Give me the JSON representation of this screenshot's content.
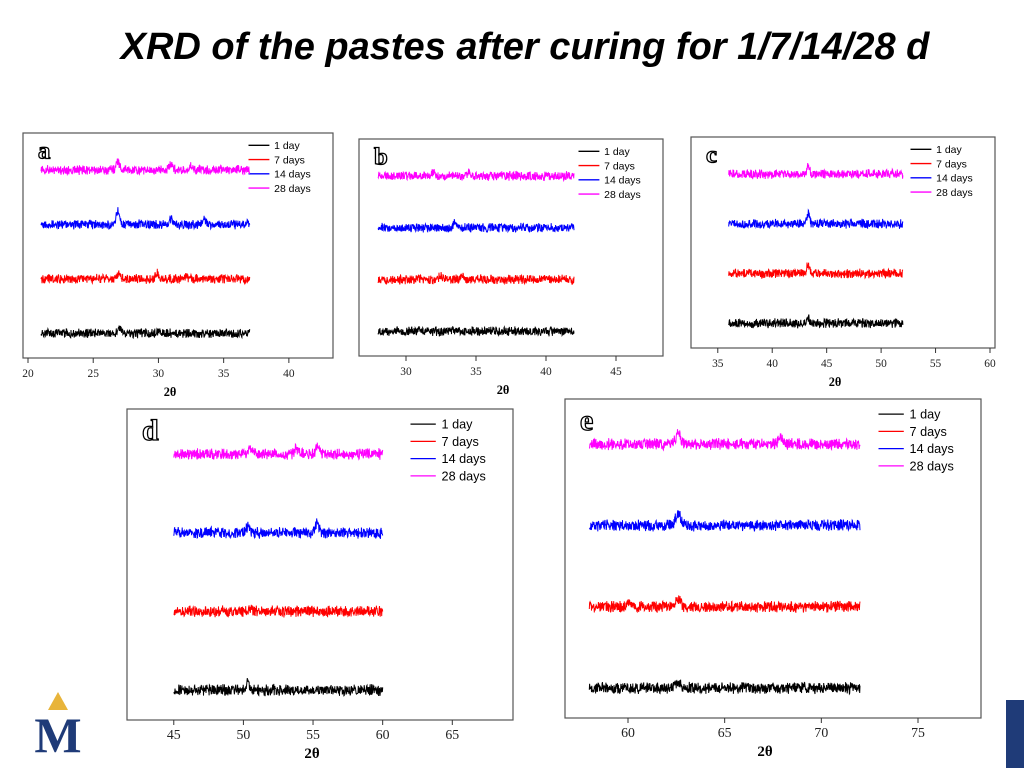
{
  "slide": {
    "title": "XRD of the pastes after curing for 1/7/14/28 d"
  },
  "branding": {
    "logo_letter": "M",
    "accent": "#1f3b78",
    "gold": "#e8b43a"
  },
  "colors": {
    "1 day": "#000000",
    "7 days": "#ff0000",
    "14 days": "#0000ff",
    "28 days": "#ff00ff"
  },
  "chart_data": [
    {
      "type": "line",
      "label": "a",
      "xlabel": "2θ",
      "ylabel": "",
      "xlim": [
        20,
        43
      ],
      "xticks": [
        20,
        25,
        30,
        35,
        40
      ],
      "data_range": [
        21,
        37
      ],
      "yticks_shown": false,
      "legend": "top-right",
      "series": [
        {
          "name": "1   day",
          "offset": 0,
          "peaks": [
            [
              27,
              1.0
            ],
            [
              30,
              0.5
            ]
          ]
        },
        {
          "name": "7   days",
          "offset": 1,
          "peaks": [
            [
              27,
              0.8
            ],
            [
              29.9,
              0.9
            ],
            [
              32,
              0.5
            ]
          ]
        },
        {
          "name": "14 days",
          "offset": 2,
          "peaks": [
            [
              26.9,
              2.5
            ],
            [
              31,
              1.0
            ],
            [
              33.5,
              1.0
            ]
          ]
        },
        {
          "name": "28 days",
          "offset": 3,
          "peaks": [
            [
              26.9,
              1.5
            ],
            [
              31,
              1.0
            ],
            [
              32.5,
              0.8
            ]
          ]
        }
      ]
    },
    {
      "type": "line",
      "label": "b",
      "xlabel": "2θ",
      "ylabel": "",
      "xlim": [
        27,
        48
      ],
      "xticks": [
        30,
        35,
        40,
        45
      ],
      "data_range": [
        28,
        42
      ],
      "yticks_shown": false,
      "legend": "top-right",
      "series": [
        {
          "name": "1   day",
          "offset": 0,
          "peaks": [
            [
              31,
              0.4
            ]
          ]
        },
        {
          "name": "7   days",
          "offset": 1,
          "peaks": [
            [
              32.5,
              0.7
            ],
            [
              34,
              0.5
            ]
          ]
        },
        {
          "name": "14 days",
          "offset": 2,
          "peaks": [
            [
              33.5,
              0.9
            ]
          ]
        },
        {
          "name": "28 days",
          "offset": 3,
          "peaks": [
            [
              32,
              0.8
            ],
            [
              34.5,
              0.6
            ]
          ]
        }
      ]
    },
    {
      "type": "line",
      "label": "c",
      "xlabel": "2θ",
      "ylabel": "",
      "xlim": [
        33,
        60
      ],
      "xticks": [
        35,
        40,
        45,
        50,
        55,
        60
      ],
      "data_range": [
        36,
        52
      ],
      "yticks_shown": false,
      "legend": "top-right",
      "series": [
        {
          "name": "1   day",
          "offset": 0,
          "peaks": [
            [
              43.3,
              0.9
            ]
          ]
        },
        {
          "name": "7   days",
          "offset": 1,
          "peaks": [
            [
              43.3,
              1.6
            ]
          ]
        },
        {
          "name": "14 days",
          "offset": 2,
          "peaks": [
            [
              43.3,
              1.8
            ]
          ]
        },
        {
          "name": "28 days",
          "offset": 3,
          "peaks": [
            [
              43.3,
              1.3
            ]
          ]
        }
      ]
    },
    {
      "type": "line",
      "label": "d",
      "xlabel": "2θ",
      "ylabel": "",
      "xlim": [
        42,
        69
      ],
      "xticks": [
        45,
        50,
        55,
        60,
        65
      ],
      "data_range": [
        45,
        60
      ],
      "yticks_shown": false,
      "legend": "top-right",
      "series": [
        {
          "name": "1   day",
          "offset": 0,
          "peaks": [
            [
              50.3,
              1.0
            ]
          ]
        },
        {
          "name": "7   days",
          "offset": 1,
          "peaks": [
            [
              50.5,
              0.5
            ]
          ]
        },
        {
          "name": "14 days",
          "offset": 2,
          "peaks": [
            [
              50.3,
              0.8
            ],
            [
              55.3,
              1.6
            ]
          ]
        },
        {
          "name": "28 days",
          "offset": 3,
          "peaks": [
            [
              50.5,
              1.0
            ],
            [
              53.8,
              0.8
            ],
            [
              55.3,
              1.0
            ]
          ]
        }
      ]
    },
    {
      "type": "line",
      "label": "e",
      "xlabel": "2θ",
      "ylabel": "",
      "xlim": [
        57,
        78
      ],
      "xticks": [
        60,
        65,
        70,
        75
      ],
      "data_range": [
        58,
        72
      ],
      "yticks_shown": false,
      "legend": "top-right",
      "series": [
        {
          "name": "1   day",
          "offset": 0,
          "peaks": [
            [
              62.6,
              0.8
            ]
          ]
        },
        {
          "name": "7   days",
          "offset": 1,
          "peaks": [
            [
              62.6,
              1.0
            ],
            [
              60.1,
              0.7
            ]
          ]
        },
        {
          "name": "14 days",
          "offset": 2,
          "peaks": [
            [
              62.6,
              1.8
            ]
          ]
        },
        {
          "name": "28 days",
          "offset": 3,
          "peaks": [
            [
              62.6,
              1.4
            ],
            [
              67.9,
              0.9
            ]
          ]
        }
      ]
    }
  ]
}
